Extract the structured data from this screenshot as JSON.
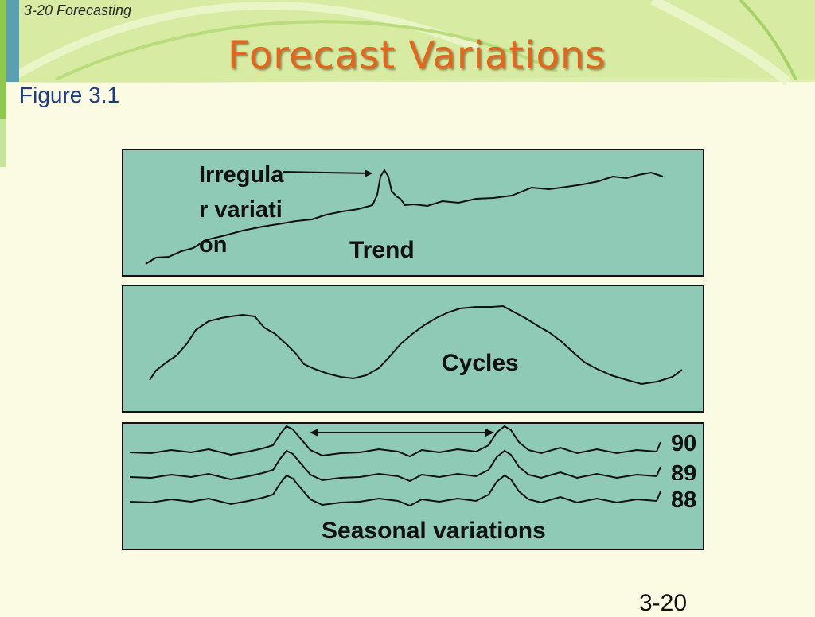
{
  "header": {
    "note": "3-20  Forecasting",
    "title": "Forecast Variations"
  },
  "figure_label": "Figure 3.1",
  "labels": {
    "irregular": "Irregular variation",
    "trend": "Trend",
    "cycles": "Cycles",
    "seasonal": "Seasonal variations"
  },
  "years": [
    "90",
    "89",
    "88"
  ],
  "slide_number": "3-20",
  "colors": {
    "panel": "#8ecab5",
    "title": "#e0671d",
    "figure_label": "#1f3d82",
    "background": "#fbfbe3"
  }
}
